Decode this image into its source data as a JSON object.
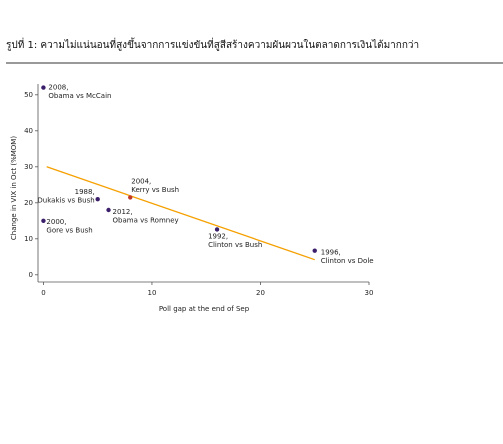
{
  "chart_data": {
    "type": "scatter",
    "title": "รูปที่ 1: ความไม่แน่นอนที่สูงขึ้นจากการแข่งขันที่สูสีสร้างความผันผวนในตลาดการเงินได้มากกว่า",
    "x_label": "Poll gap at the end of Sep",
    "y_label": "Change in VIX in Oct (%MOM)",
    "x": [
      0,
      0,
      5,
      6,
      8,
      16,
      25
    ],
    "values": [
      52,
      15,
      21,
      18,
      21.5,
      12.6,
      6.7
    ],
    "point_labels": [
      [
        "2008,",
        "Obama vs McCain"
      ],
      [
        "2000,",
        "Gore vs Bush"
      ],
      [
        "1988,",
        "Dukakis vs Bush"
      ],
      [
        "2012,",
        "Obama vs Romney"
      ],
      [
        "2004,",
        "Kerry vs Bush"
      ],
      [
        "1992,",
        "Clinton vs Bush"
      ],
      [
        "1996,",
        "Clinton vs Dole"
      ]
    ],
    "colors": [
      "#3b1f6b",
      "#3b1f6b",
      "#3b1f6b",
      "#3b1f6b",
      "#c0392b",
      "#3b1f6b",
      "#3b1f6b"
    ],
    "trendline": {
      "x": [
        0.3,
        25
      ],
      "values": [
        30,
        4.2
      ],
      "color": "#f5a000"
    },
    "xlim": [
      -0.5,
      30
    ],
    "ylim": [
      -2,
      53
    ],
    "xticks": [
      0,
      10,
      20,
      30
    ],
    "yticks": [
      0,
      10,
      20,
      30,
      40,
      50
    ]
  }
}
